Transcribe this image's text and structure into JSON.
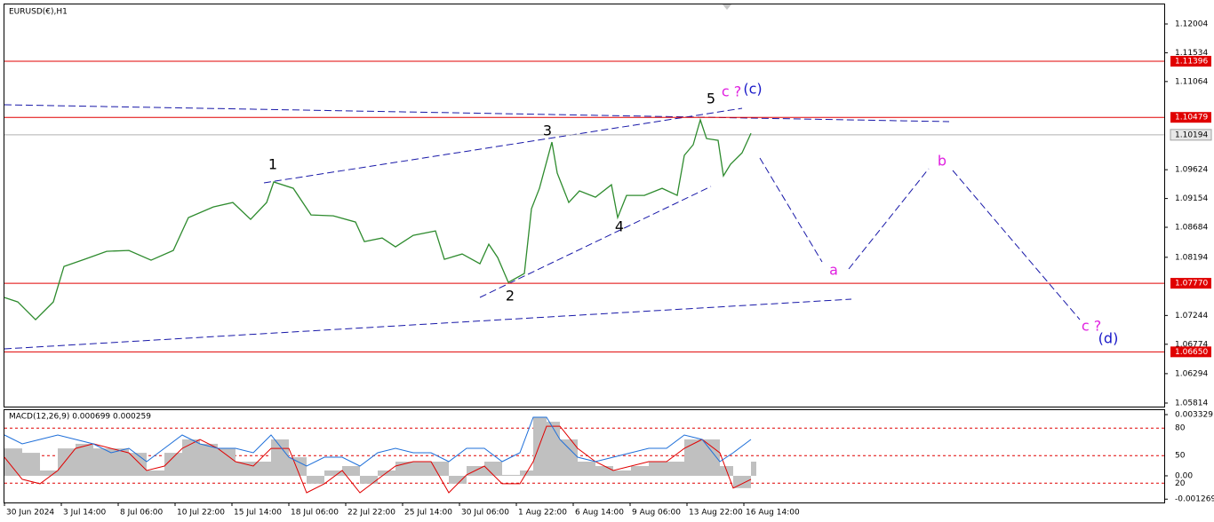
{
  "chart_data": [
    {
      "type": "line",
      "title": "EURUSD(€),H1",
      "color": "#2e8b2e",
      "x": [
        0,
        15,
        35,
        55,
        67,
        90,
        115,
        140,
        165,
        190,
        207,
        235,
        257,
        277,
        295,
        303,
        325,
        345,
        370,
        395,
        405,
        425,
        440,
        460,
        485,
        495,
        515,
        535,
        545,
        555,
        567,
        585,
        593,
        602,
        616,
        622,
        635,
        647,
        665,
        683,
        690,
        700,
        720,
        740,
        757,
        765,
        775,
        783,
        790,
        803,
        809,
        817,
        830,
        840
      ],
      "values": [
        1.07538,
        1.07465,
        1.07175,
        1.07465,
        1.08045,
        1.08161,
        1.08292,
        1.08306,
        1.08147,
        1.08306,
        1.08843,
        1.09017,
        1.09089,
        1.08814,
        1.09089,
        1.09423,
        1.09321,
        1.08886,
        1.08872,
        1.0877,
        1.08451,
        1.08509,
        1.08364,
        1.08553,
        1.08625,
        1.08161,
        1.08248,
        1.08089,
        1.08408,
        1.0819,
        1.07784,
        1.07929,
        1.08988,
        1.09321,
        1.10075,
        1.09568,
        1.09089,
        1.09278,
        1.09176,
        1.09379,
        1.08843,
        1.09205,
        1.09205,
        1.09321,
        1.09205,
        1.09858,
        1.10032,
        1.10438,
        1.10133,
        1.10104,
        1.09524,
        1.09713,
        1.09901,
        1.1022
      ],
      "xlim": [
        0,
        1305
      ],
      "ylim": [
        1.05756,
        1.12323
      ],
      "yticks": [
        1.12004,
        1.11534,
        1.11064,
        1.09624,
        1.09154,
        1.08684,
        1.08194,
        1.07244,
        1.06774,
        1.06294,
        1.05814
      ],
      "levels": [
        {
          "value": 1.11396,
          "label": "1.11396"
        },
        {
          "value": 1.10479,
          "label": "1.10479"
        },
        {
          "value": 1.0777,
          "label": "1.07770"
        },
        {
          "value": 1.0665,
          "label": "1.06650"
        }
      ],
      "level_color": "#e00000",
      "last_price": 1.10194,
      "annotations": [
        {
          "text": "1",
          "color": "#000000"
        },
        {
          "text": "2",
          "color": "#000000"
        },
        {
          "text": "3",
          "color": "#000000"
        },
        {
          "text": "4",
          "color": "#000000"
        },
        {
          "text": "5",
          "color": "#000000"
        },
        {
          "text": "c ?",
          "color": "#e020e0"
        },
        {
          "text": "(c)",
          "color": "#1818c8"
        },
        {
          "text": "a",
          "color": "#e020e0"
        },
        {
          "text": "b",
          "color": "#e020e0"
        },
        {
          "text": "c ?",
          "color": "#e020e0"
        },
        {
          "text": "(d)",
          "color": "#1818c8"
        }
      ]
    },
    {
      "type": "macd",
      "title": "MACD(12,26,9) 0.000699 0.000259",
      "x": [
        0,
        20,
        40,
        60,
        80,
        100,
        120,
        140,
        160,
        180,
        200,
        220,
        240,
        260,
        280,
        300,
        320,
        340,
        360,
        380,
        400,
        420,
        440,
        460,
        480,
        500,
        520,
        540,
        560,
        580,
        595,
        610,
        625,
        645,
        665,
        685,
        705,
        725,
        745,
        765,
        785,
        805,
        820,
        840
      ],
      "series": [
        {
          "type": "bar",
          "color": "#c0c0c0",
          "values": [
            0.00149,
            0.00125,
            0.00029,
            0.00149,
            0.00174,
            0.00149,
            0.00149,
            0.00125,
            0.00029,
            0.00125,
            0.00198,
            0.00174,
            0.00149,
            0.00077,
            0.00077,
            0.00198,
            0.00101,
            -0.00043,
            0.00029,
            0.00053,
            -0.00043,
            0.00029,
            0.00077,
            0.00077,
            0.00077,
            -0.00043,
            0.00053,
            0.00077,
            5e-05,
            0.00029,
            0.00318,
            0.00294,
            0.00198,
            0.00077,
            0.00053,
            0.00029,
            0.00053,
            0.00077,
            0.00077,
            0.00198,
            0.00198,
            0.00053,
            -0.00067,
            0.00077
          ]
        },
        {
          "type": "line",
          "color": "#e00000",
          "values": [
            0.00101,
            -0.00019,
            -0.00043,
            0.00029,
            0.00149,
            0.00174,
            0.00149,
            0.00125,
            0.00029,
            0.00053,
            0.00149,
            0.00198,
            0.00149,
            0.00077,
            0.00053,
            0.00149,
            0.00149,
            -0.00092,
            -0.00043,
            0.00029,
            -0.00092,
            -0.00019,
            0.00053,
            0.00077,
            0.00077,
            -0.00092,
            5e-05,
            0.00053,
            -0.00043,
            -0.00043,
            0.00077,
            0.0027,
            0.0027,
            0.00149,
            0.00077,
            0.00029,
            0.00053,
            0.00077,
            0.00077,
            0.00149,
            0.00198,
            0.00125,
            -0.00067,
            -0.00019
          ]
        },
        {
          "type": "line",
          "color": "#1e6fd9",
          "axis": "y2",
          "values": [
            72.5,
            62.8,
            67.6,
            72.5,
            67.6,
            62.8,
            53.1,
            58.0,
            43.5,
            58.0,
            72.5,
            62.8,
            58.0,
            58.0,
            53.1,
            72.5,
            48.3,
            38.6,
            48.3,
            48.3,
            38.6,
            53.1,
            58.0,
            53.1,
            53.1,
            43.5,
            58.0,
            58.0,
            43.5,
            53.1,
            91.8,
            91.8,
            67.6,
            48.3,
            43.5,
            48.3,
            53.1,
            58.0,
            58.0,
            72.5,
            67.6,
            43.5,
            53.1,
            67.6
          ]
        }
      ],
      "xlim": [
        0,
        1305
      ],
      "ylim": [
        -0.00145,
        0.00362
      ],
      "yticks": [
        0.003329,
        {
          "value": 0,
          "label": "0.00"
        },
        -0.001269
      ],
      "y2lim": [
        -1,
        100.5
      ],
      "y2ticks": [
        80,
        50,
        20
      ],
      "y2_level_color": "#e00000",
      "xticks": [
        {
          "value": 0,
          "label": "30 Jun 2024"
        },
        {
          "value": 64,
          "label": "3 Jul 14:00"
        },
        {
          "value": 128,
          "label": "8 Jul 06:00"
        },
        {
          "value": 192,
          "label": "10 Jul 22:00"
        },
        {
          "value": 256,
          "label": "15 Jul 14:00"
        },
        {
          "value": 320,
          "label": "18 Jul 06:00"
        },
        {
          "value": 384,
          "label": "22 Jul 22:00"
        },
        {
          "value": 448,
          "label": "25 Jul 14:00"
        },
        {
          "value": 512,
          "label": "30 Jul 06:00"
        },
        {
          "value": 576,
          "label": "1 Aug 22:00"
        },
        {
          "value": 640,
          "label": "6 Aug 14:00"
        },
        {
          "value": 704,
          "label": "9 Aug 06:00"
        },
        {
          "value": 768,
          "label": "13 Aug 22:00"
        },
        {
          "value": 832,
          "label": "16 Aug 14:00"
        }
      ]
    }
  ]
}
